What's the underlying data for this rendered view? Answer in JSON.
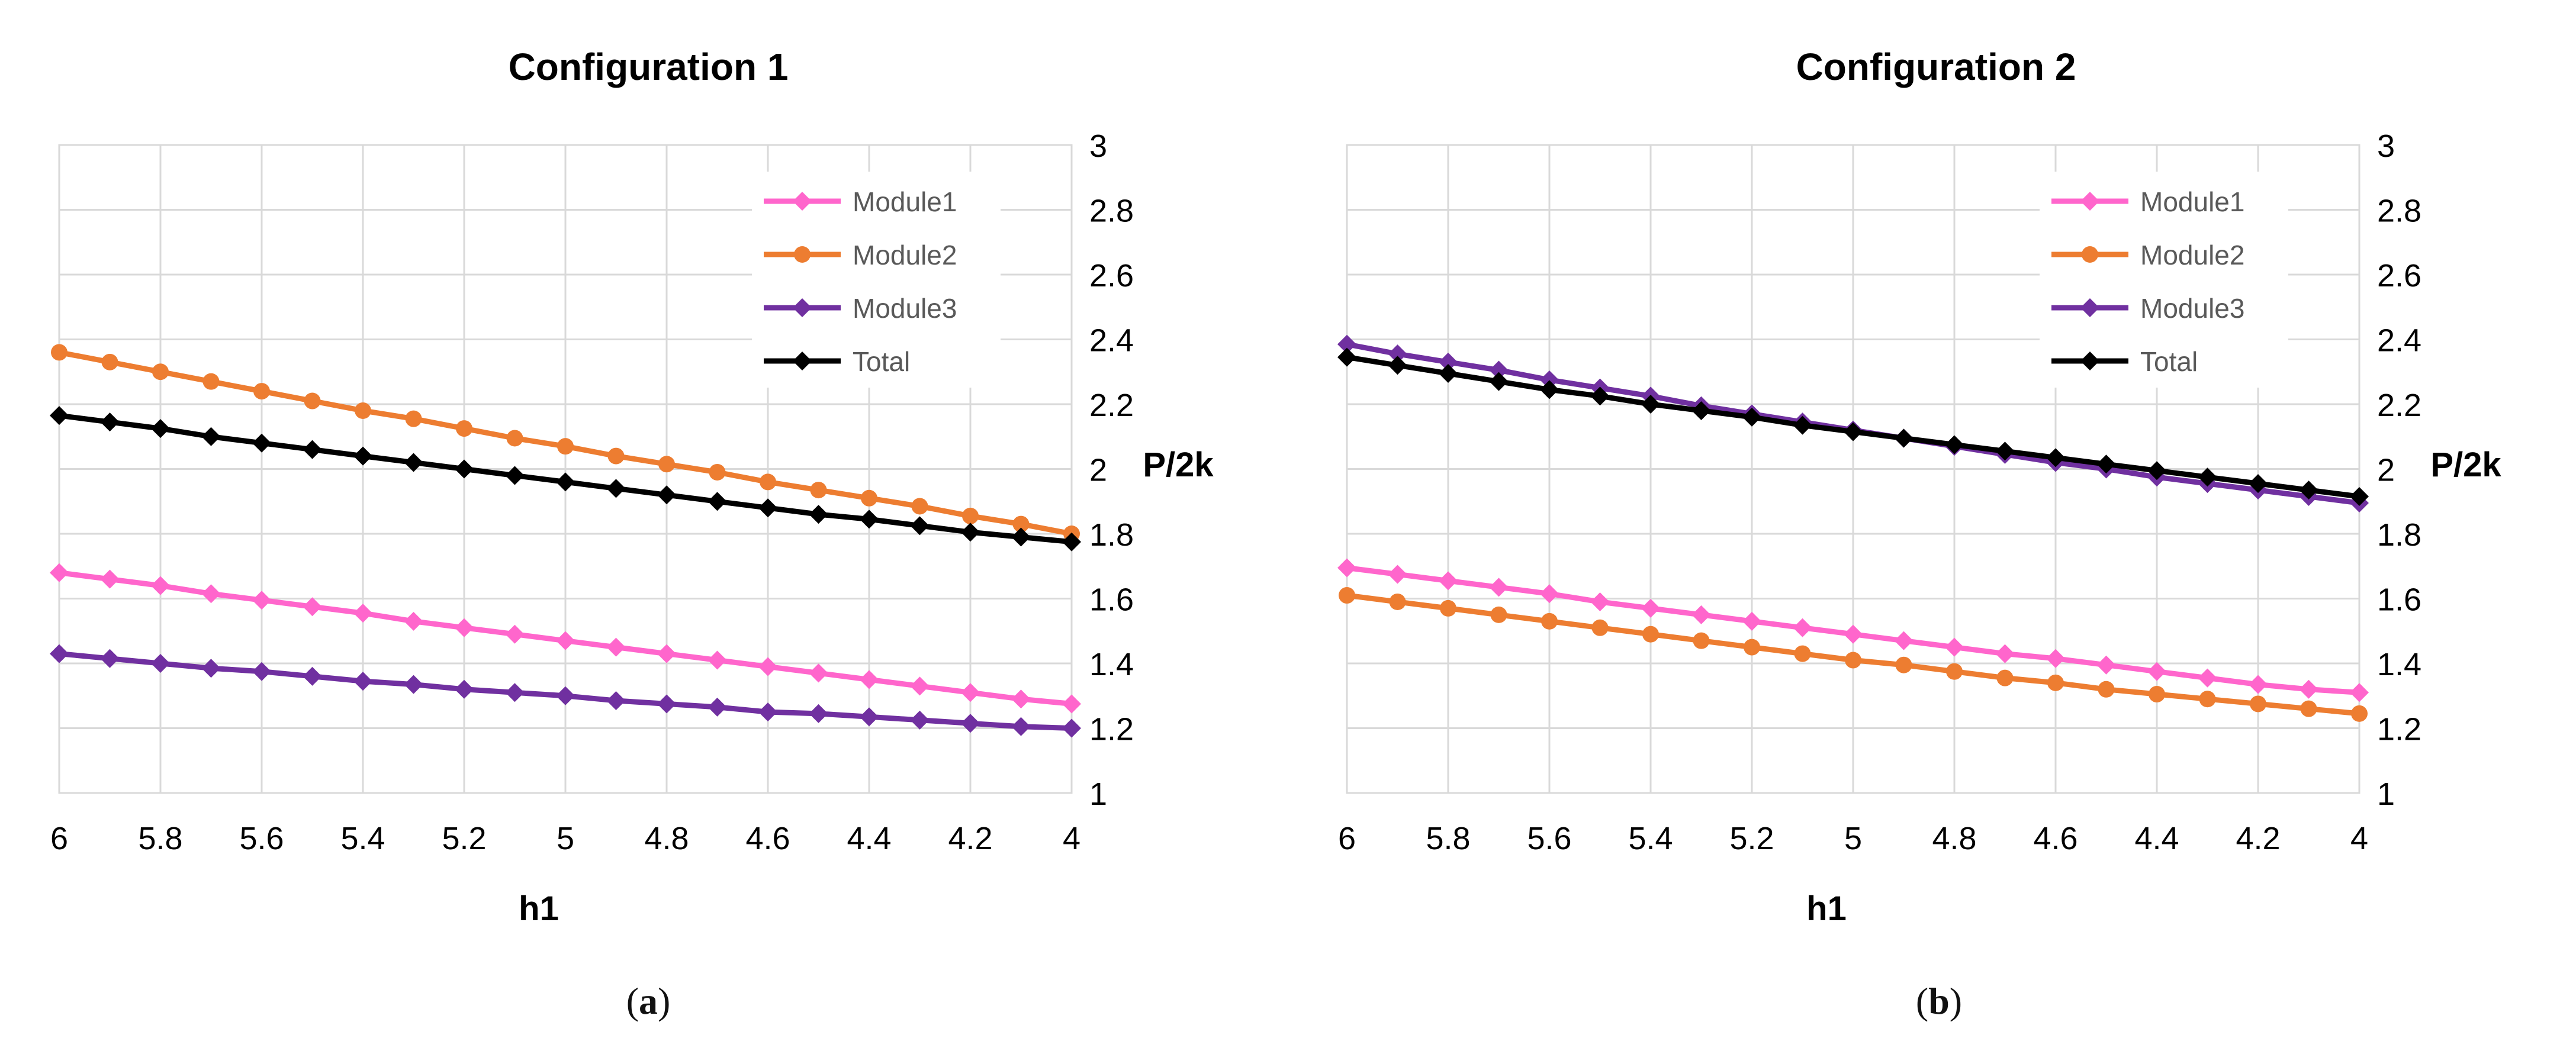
{
  "chart_data": [
    {
      "type": "line",
      "panel": "a",
      "title": "Configuration 1",
      "xlabel": "h1",
      "ylabel": "P/2k",
      "x_reversed": true,
      "xlim": [
        6,
        4
      ],
      "ylim": [
        1,
        3
      ],
      "y_axis_side": "right",
      "legend_position": "top-right",
      "grid": true,
      "x": [
        6,
        5.9,
        5.8,
        5.7,
        5.6,
        5.5,
        5.4,
        5.3,
        5.2,
        5.1,
        5,
        4.9,
        4.8,
        4.7,
        4.6,
        4.5,
        4.4,
        4.3,
        4.2,
        4.1,
        4
      ],
      "x_ticks": [
        "6",
        "5.8",
        "5.6",
        "5.4",
        "5.2",
        "5",
        "4.8",
        "4.6",
        "4.4",
        "4.2",
        "4"
      ],
      "y_ticks": [
        "1",
        "1.2",
        "1.4",
        "1.6",
        "1.8",
        "2",
        "2.2",
        "2.4",
        "2.6",
        "2.8",
        "3"
      ],
      "series": [
        {
          "name": "Module1",
          "color": "#ff66cc",
          "marker": "diamond",
          "values": [
            1.68,
            1.66,
            1.64,
            1.615,
            1.595,
            1.575,
            1.555,
            1.53,
            1.51,
            1.49,
            1.47,
            1.45,
            1.43,
            1.41,
            1.39,
            1.37,
            1.35,
            1.33,
            1.31,
            1.29,
            1.275
          ]
        },
        {
          "name": "Module2",
          "color": "#ed7d31",
          "marker": "circle",
          "values": [
            2.36,
            2.33,
            2.3,
            2.27,
            2.24,
            2.21,
            2.18,
            2.155,
            2.125,
            2.095,
            2.07,
            2.04,
            2.015,
            1.99,
            1.96,
            1.935,
            1.91,
            1.885,
            1.855,
            1.83,
            1.8
          ]
        },
        {
          "name": "Module3",
          "color": "#7030a0",
          "marker": "diamond",
          "values": [
            1.43,
            1.415,
            1.4,
            1.385,
            1.375,
            1.36,
            1.345,
            1.335,
            1.32,
            1.31,
            1.3,
            1.285,
            1.275,
            1.265,
            1.25,
            1.245,
            1.235,
            1.225,
            1.215,
            1.205,
            1.2
          ]
        },
        {
          "name": "Total",
          "color": "#000000",
          "marker": "diamond",
          "values": [
            2.165,
            2.145,
            2.125,
            2.1,
            2.08,
            2.06,
            2.04,
            2.02,
            2.0,
            1.98,
            1.96,
            1.94,
            1.92,
            1.9,
            1.88,
            1.86,
            1.845,
            1.825,
            1.805,
            1.79,
            1.775
          ]
        }
      ]
    },
    {
      "type": "line",
      "panel": "b",
      "title": "Configuration 2",
      "xlabel": "h1",
      "ylabel": "P/2k",
      "x_reversed": true,
      "xlim": [
        6,
        4
      ],
      "ylim": [
        1,
        3
      ],
      "y_axis_side": "right",
      "legend_position": "top-right",
      "grid": true,
      "x": [
        6,
        5.9,
        5.8,
        5.7,
        5.6,
        5.5,
        5.4,
        5.3,
        5.2,
        5.1,
        5,
        4.9,
        4.8,
        4.7,
        4.6,
        4.5,
        4.4,
        4.3,
        4.2,
        4.1,
        4
      ],
      "x_ticks": [
        "6",
        "5.8",
        "5.6",
        "5.4",
        "5.2",
        "5",
        "4.8",
        "4.6",
        "4.4",
        "4.2",
        "4"
      ],
      "y_ticks": [
        "1",
        "1.2",
        "1.4",
        "1.6",
        "1.8",
        "2",
        "2.2",
        "2.4",
        "2.6",
        "2.8",
        "3"
      ],
      "series": [
        {
          "name": "Module1",
          "color": "#ff66cc",
          "marker": "diamond",
          "values": [
            1.695,
            1.675,
            1.655,
            1.635,
            1.615,
            1.59,
            1.57,
            1.55,
            1.53,
            1.51,
            1.49,
            1.47,
            1.45,
            1.43,
            1.415,
            1.395,
            1.375,
            1.355,
            1.335,
            1.32,
            1.31
          ]
        },
        {
          "name": "Module2",
          "color": "#ed7d31",
          "marker": "circle",
          "values": [
            1.61,
            1.59,
            1.57,
            1.55,
            1.53,
            1.51,
            1.49,
            1.47,
            1.45,
            1.43,
            1.41,
            1.395,
            1.375,
            1.355,
            1.34,
            1.32,
            1.305,
            1.29,
            1.275,
            1.26,
            1.245
          ]
        },
        {
          "name": "Module3",
          "color": "#7030a0",
          "marker": "diamond",
          "values": [
            2.385,
            2.355,
            2.33,
            2.305,
            2.275,
            2.25,
            2.225,
            2.195,
            2.17,
            2.145,
            2.12,
            2.095,
            2.07,
            2.045,
            2.02,
            2.0,
            1.975,
            1.955,
            1.935,
            1.915,
            1.895
          ]
        },
        {
          "name": "Total",
          "color": "#000000",
          "marker": "diamond",
          "values": [
            2.345,
            2.32,
            2.295,
            2.27,
            2.245,
            2.225,
            2.2,
            2.18,
            2.16,
            2.135,
            2.115,
            2.095,
            2.075,
            2.055,
            2.035,
            2.015,
            1.995,
            1.975,
            1.955,
            1.935,
            1.915
          ]
        }
      ]
    }
  ],
  "captions": {
    "a": "a",
    "b": "b"
  }
}
